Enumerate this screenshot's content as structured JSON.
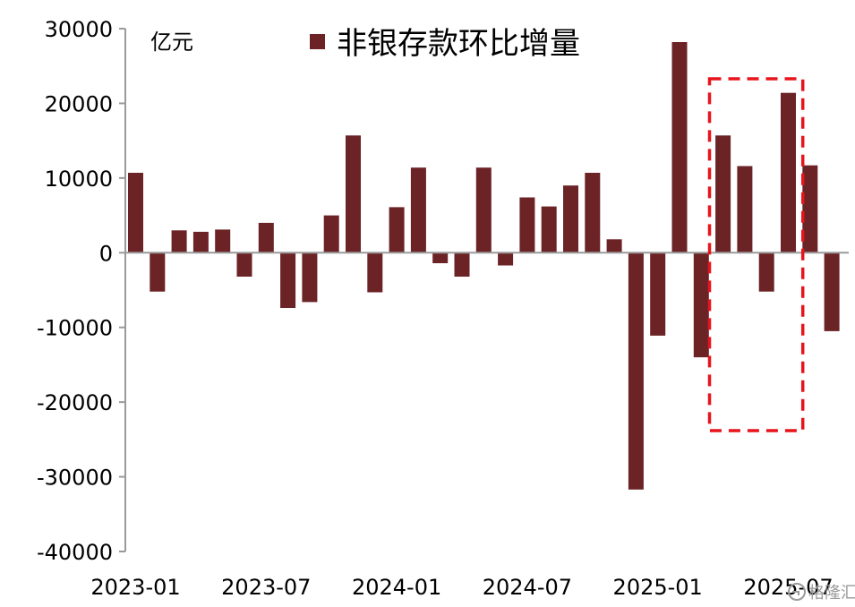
{
  "chart_data": {
    "type": "bar",
    "title": "",
    "xlabel": "",
    "ylabel": "",
    "unit_label": "亿元",
    "legend": {
      "label": "非银存款环比增量",
      "position": "top-center"
    },
    "ylim": [
      -40000,
      30000
    ],
    "yticks": [
      30000,
      20000,
      10000,
      0,
      -10000,
      -20000,
      -30000,
      -40000
    ],
    "ytick_labels": [
      "30000",
      "20000",
      "10000",
      "0",
      "-10000",
      "-20000",
      "-30000",
      "-40000"
    ],
    "xtick_labels": [
      "2023-01",
      "2023-07",
      "2024-01",
      "2024-07",
      "2025-01",
      "2025-07"
    ],
    "grid": false,
    "bar_color": "#6b2326",
    "highlight_box": {
      "color": "#e8141c",
      "style": "dashed",
      "from": "2025-04",
      "to": "2025-07"
    },
    "categories": [
      "2023-01",
      "2023-02",
      "2023-03",
      "2023-04",
      "2023-05",
      "2023-06",
      "2023-07",
      "2023-08",
      "2023-09",
      "2023-10",
      "2023-11",
      "2023-12",
      "2024-01",
      "2024-02",
      "2024-03",
      "2024-04",
      "2024-05",
      "2024-06",
      "2024-07",
      "2024-08",
      "2024-09",
      "2024-10",
      "2024-11",
      "2024-12",
      "2025-01",
      "2025-02",
      "2025-03",
      "2025-04",
      "2025-05",
      "2025-06",
      "2025-07",
      "2025-08",
      "2025-09"
    ],
    "series": [
      {
        "values": [
          10700,
          -5200,
          3000,
          2800,
          3100,
          -3200,
          4000,
          -7400,
          -6600,
          5000,
          15700,
          -5300,
          6100,
          11400,
          -1400,
          -3200,
          11400,
          -1700,
          7400,
          6200,
          9000,
          10700,
          1800,
          -31700,
          -11100,
          28200,
          -14000,
          15700,
          11600,
          -5200,
          21400,
          11700,
          -10500
        ]
      }
    ]
  },
  "watermark": {
    "icon": "brand-logo-icon",
    "text": "格隆汇"
  }
}
